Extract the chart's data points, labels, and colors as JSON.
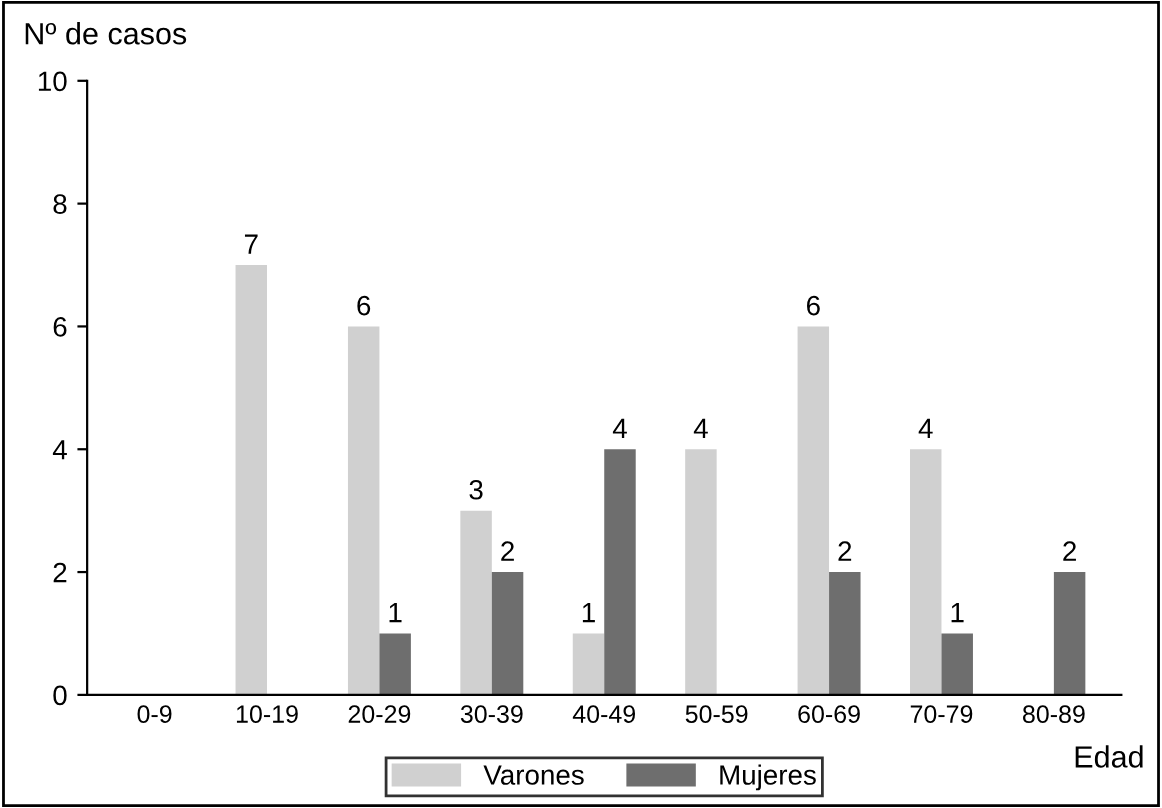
{
  "chart_data": {
    "type": "bar",
    "xlabel": "Edad",
    "ylabel": "Nº de casos",
    "categories": [
      "0-9",
      "10-19",
      "20-29",
      "30-39",
      "40-49",
      "50-59",
      "60-69",
      "70-79",
      "80-89"
    ],
    "series": [
      {
        "name": "Varones",
        "color": "#d0d0d0",
        "values": [
          null,
          7,
          6,
          3,
          1,
          4,
          6,
          4,
          null
        ],
        "value_labels": [
          null,
          "7",
          "6",
          "3",
          "1",
          "4",
          "6",
          "4",
          null
        ]
      },
      {
        "name": "Mujeres",
        "color": "#6e6e6e",
        "values": [
          null,
          null,
          1,
          2,
          4,
          null,
          2,
          1,
          2
        ],
        "value_labels": [
          null,
          null,
          "1",
          "2",
          "4",
          null,
          "2",
          "1",
          "2"
        ]
      }
    ],
    "ylim": [
      0,
      10
    ],
    "yticks": [
      0,
      2,
      4,
      6,
      8,
      10
    ],
    "grid": false,
    "legend": "bottom"
  }
}
